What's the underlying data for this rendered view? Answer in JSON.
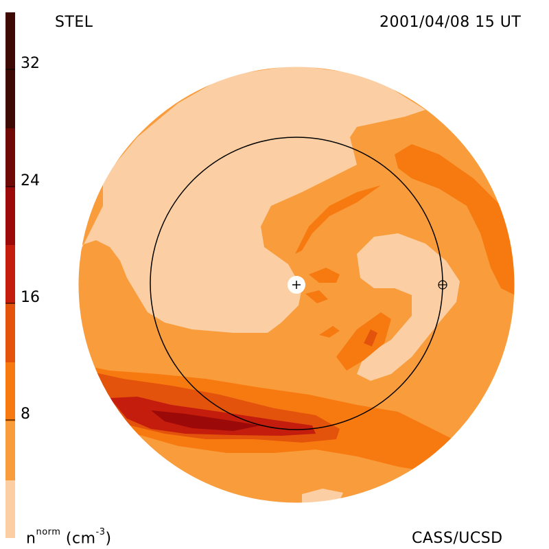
{
  "header": {
    "instrument": "STEL",
    "timestamp": "2001/04/08 15 UT"
  },
  "footer": {
    "credit": "CASS/UCSD",
    "unit_base": "n",
    "unit_sup": "norm",
    "unit_rest": " (cm",
    "unit_exp": "-3",
    "unit_close": ")"
  },
  "colorbar": {
    "ticks": [
      "32",
      "24",
      "16",
      "8"
    ],
    "colors": [
      "#fbcfa3",
      "#f99c3c",
      "#f77a10",
      "#e3530c",
      "#c41d0d",
      "#9b0a08",
      "#700806",
      "#3e0804"
    ]
  },
  "map": {
    "background_color": "#f99c3c",
    "light_color": "#fbcfa3",
    "medium_color": "#f77a10",
    "dark_color": "#e3530c",
    "darker_color": "#c41d0d",
    "darkest_color": "#9b0a08"
  }
}
